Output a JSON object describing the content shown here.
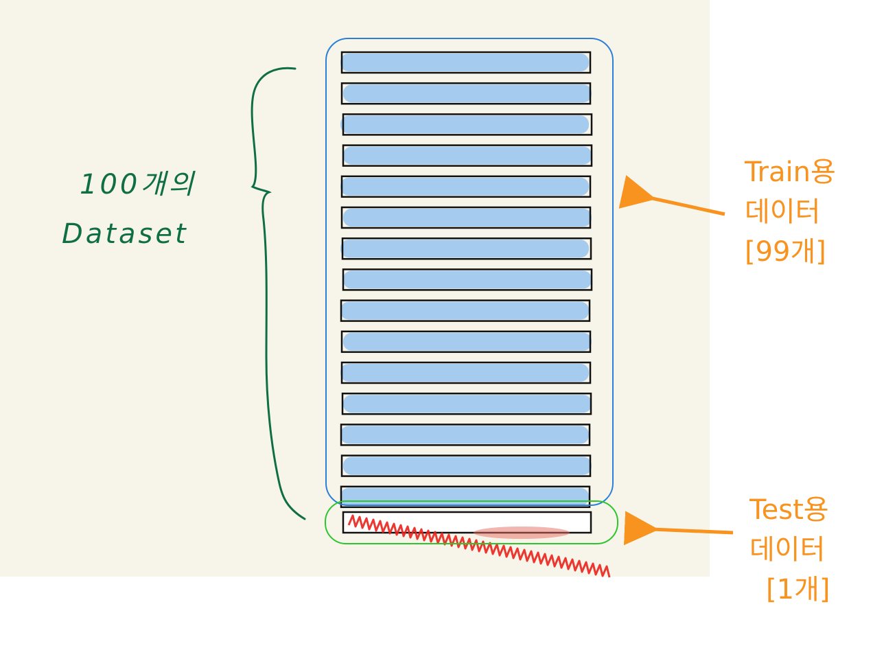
{
  "left_annotation": {
    "line1": "100개의",
    "line2": "Dataset",
    "color": "#0f6e45"
  },
  "train_annotation": {
    "line1": "Train용",
    "line2": "데이터",
    "line3": "[99개]",
    "color": "#f7931e"
  },
  "test_annotation": {
    "line1": "Test용",
    "line2": "데이터",
    "line3": "[1개]",
    "color": "#f7931e"
  },
  "colors": {
    "background": "#f7f5ea",
    "train_fill": "#a0c8ee",
    "train_outline": "#2b7fd6",
    "test_fill": "#e8231c",
    "test_outline": "#2ec42e",
    "arrow": "#f7931e",
    "brace": "#0f6e45"
  },
  "train_bar_count": 15,
  "test_bar_count": 1
}
